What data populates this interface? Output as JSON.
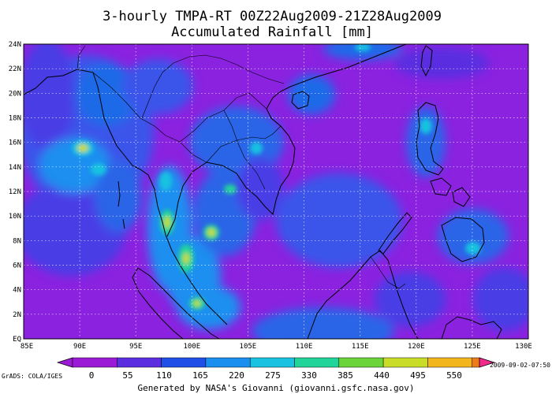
{
  "title": {
    "line1": "3-hourly TMPA-RT 00Z22Aug2009-21Z28Aug2009",
    "line2": "Accumulated Rainfall [mm]"
  },
  "map": {
    "lat_ticks": [
      "24N",
      "22N",
      "20N",
      "18N",
      "16N",
      "14N",
      "12N",
      "10N",
      "8N",
      "6N",
      "4N",
      "2N",
      "EQ"
    ],
    "lon_ticks": [
      "85E",
      "90E",
      "95E",
      "100E",
      "105E",
      "110E",
      "115E",
      "120E",
      "125E",
      "130E"
    ],
    "extent": {
      "lon": [
        85,
        130
      ],
      "lat": [
        0,
        24
      ]
    },
    "grid": "dotted",
    "coastline_color": "#000000"
  },
  "colorbar": {
    "labels": [
      "0",
      "55",
      "110",
      "165",
      "220",
      "275",
      "330",
      "385",
      "440",
      "495",
      "550"
    ],
    "colors": [
      "#9a1ad6",
      "#5b2fe0",
      "#1f4fe6",
      "#1a8ff0",
      "#18c2e0",
      "#20d49a",
      "#6ad43a",
      "#c8dc28",
      "#f2b61c",
      "#f07a18",
      "#ec3a1e",
      "#f02a8c"
    ]
  },
  "footer": {
    "left": "GrADS: COLA/IGES",
    "center": "Generated by NASA's Giovanni (giovanni.gsfc.nasa.gov)",
    "right": "2009-09-02-07:50"
  }
}
